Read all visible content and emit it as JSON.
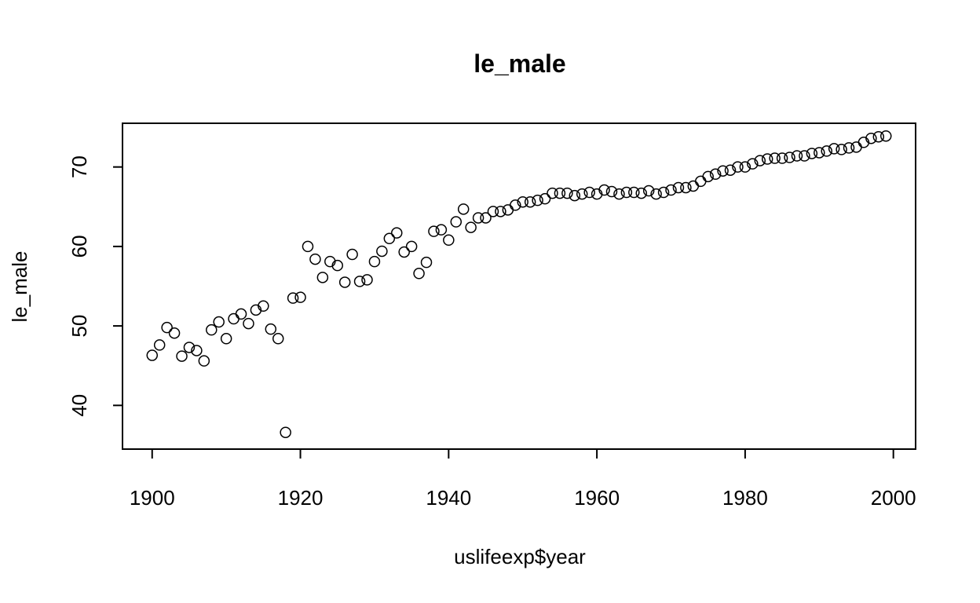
{
  "chart_data": {
    "type": "scatter",
    "title": "le_male",
    "xlabel": "uslifeexp$year",
    "ylabel": "le_male",
    "xlim": [
      1896,
      2003
    ],
    "ylim": [
      34.5,
      75.5
    ],
    "x_ticks": [
      1900,
      1920,
      1940,
      1960,
      1980,
      2000
    ],
    "y_ticks": [
      40,
      50,
      60,
      70
    ],
    "grid": false,
    "legend": "none",
    "marker": "open-circle",
    "series": [
      {
        "x": [
          1900,
          1901,
          1902,
          1903,
          1904,
          1905,
          1906,
          1907,
          1908,
          1909,
          1910,
          1911,
          1912,
          1913,
          1914,
          1915,
          1916,
          1917,
          1918,
          1919,
          1920,
          1921,
          1922,
          1923,
          1924,
          1925,
          1926,
          1927,
          1928,
          1929,
          1930,
          1931,
          1932,
          1933,
          1934,
          1935,
          1936,
          1937,
          1938,
          1939,
          1940,
          1941,
          1942,
          1943,
          1944,
          1945,
          1946,
          1947,
          1948,
          1949,
          1950,
          1951,
          1952,
          1953,
          1954,
          1955,
          1956,
          1957,
          1958,
          1959,
          1960,
          1961,
          1962,
          1963,
          1964,
          1965,
          1966,
          1967,
          1968,
          1969,
          1970,
          1971,
          1972,
          1973,
          1974,
          1975,
          1976,
          1977,
          1978,
          1979,
          1980,
          1981,
          1982,
          1983,
          1984,
          1985,
          1986,
          1987,
          1988,
          1989,
          1990,
          1991,
          1992,
          1993,
          1994,
          1995,
          1996,
          1997,
          1998,
          1999
        ],
        "y": [
          46.3,
          47.6,
          49.8,
          49.1,
          46.2,
          47.3,
          46.9,
          45.6,
          49.5,
          50.5,
          48.4,
          50.9,
          51.5,
          50.3,
          52.0,
          52.5,
          49.6,
          48.4,
          36.6,
          53.5,
          53.6,
          60.0,
          58.4,
          56.1,
          58.1,
          57.6,
          55.5,
          59.0,
          55.6,
          55.8,
          58.1,
          59.4,
          61.0,
          61.7,
          59.3,
          60.0,
          56.6,
          58.0,
          61.9,
          62.1,
          60.8,
          63.1,
          64.7,
          62.4,
          63.6,
          63.6,
          64.4,
          64.4,
          64.6,
          65.2,
          65.6,
          65.6,
          65.8,
          66.0,
          66.7,
          66.7,
          66.7,
          66.4,
          66.6,
          66.8,
          66.6,
          67.1,
          66.9,
          66.6,
          66.8,
          66.8,
          66.7,
          67.0,
          66.6,
          66.8,
          67.1,
          67.4,
          67.4,
          67.6,
          68.2,
          68.8,
          69.1,
          69.5,
          69.6,
          70.0,
          70.0,
          70.4,
          70.8,
          71.0,
          71.1,
          71.1,
          71.2,
          71.4,
          71.4,
          71.7,
          71.8,
          72.0,
          72.3,
          72.2,
          72.4,
          72.5,
          73.1,
          73.6,
          73.8,
          73.9
        ]
      }
    ]
  }
}
